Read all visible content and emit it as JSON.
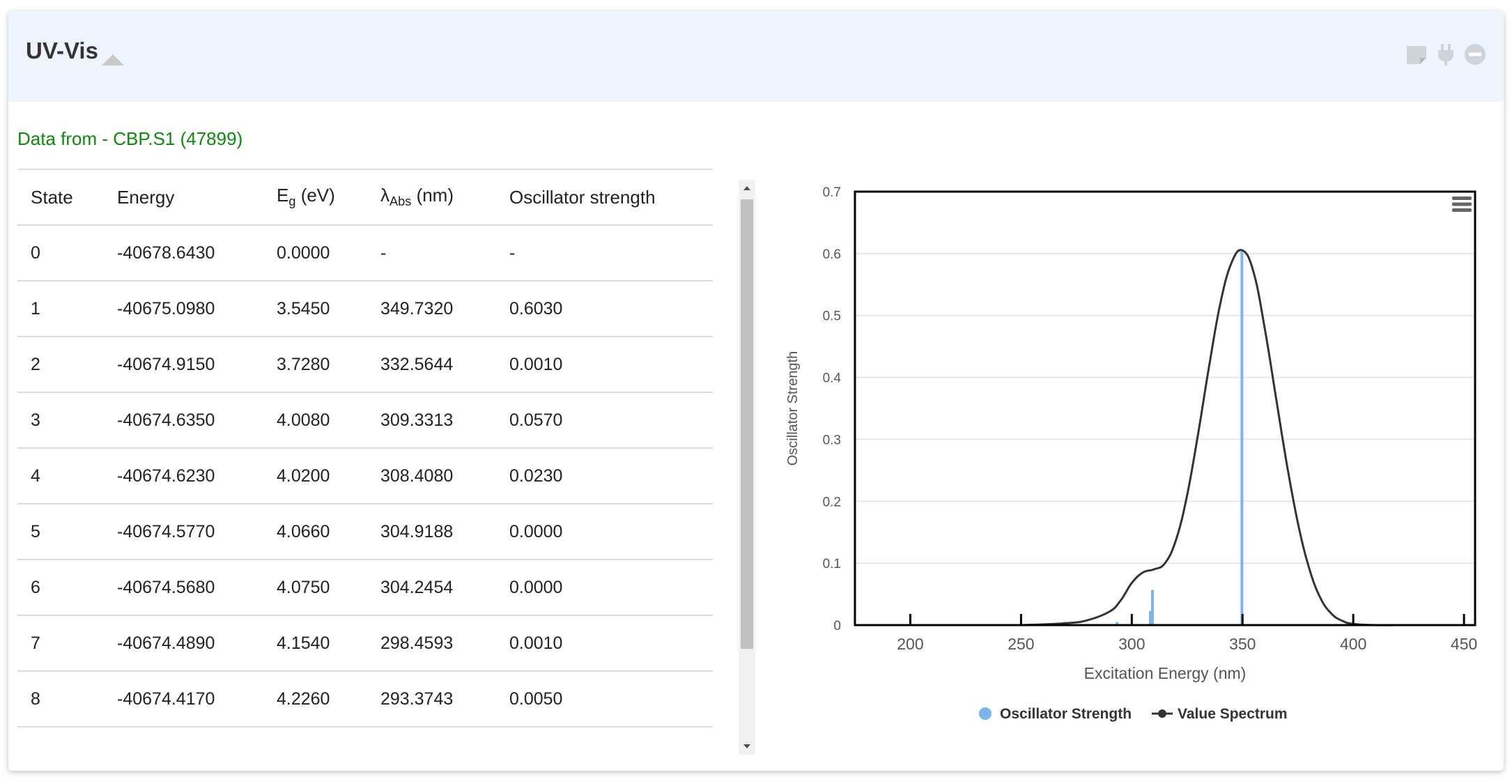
{
  "header": {
    "title": "UV-Vis",
    "collapse_icon": "triangle-up-icon",
    "tools": [
      "note-icon",
      "plug-icon",
      "minus-circle-icon"
    ]
  },
  "source": {
    "label": "Data from - CBP.S1 (47899)",
    "color": "#0c8a0c"
  },
  "table": {
    "columns": {
      "state": "State",
      "energy": "Energy",
      "eg_base": "E",
      "eg_sub": "g",
      "eg_unit": " (eV)",
      "lambda_base": "λ",
      "lambda_sub": "Abs",
      "lambda_unit": " (nm)",
      "osc": "Oscillator strength"
    },
    "rows": [
      {
        "state": "0",
        "energy": "-40678.6430",
        "eg": "0.0000",
        "lambda": "-",
        "osc": "-"
      },
      {
        "state": "1",
        "energy": "-40675.0980",
        "eg": "3.5450",
        "lambda": "349.7320",
        "osc": "0.6030"
      },
      {
        "state": "2",
        "energy": "-40674.9150",
        "eg": "3.7280",
        "lambda": "332.5644",
        "osc": "0.0010"
      },
      {
        "state": "3",
        "energy": "-40674.6350",
        "eg": "4.0080",
        "lambda": "309.3313",
        "osc": "0.0570"
      },
      {
        "state": "4",
        "energy": "-40674.6230",
        "eg": "4.0200",
        "lambda": "308.4080",
        "osc": "0.0230"
      },
      {
        "state": "5",
        "energy": "-40674.5770",
        "eg": "4.0660",
        "lambda": "304.9188",
        "osc": "0.0000"
      },
      {
        "state": "6",
        "energy": "-40674.5680",
        "eg": "4.0750",
        "lambda": "304.2454",
        "osc": "0.0000"
      },
      {
        "state": "7",
        "energy": "-40674.4890",
        "eg": "4.1540",
        "lambda": "298.4593",
        "osc": "0.0010"
      },
      {
        "state": "8",
        "energy": "-40674.4170",
        "eg": "4.2260",
        "lambda": "293.3743",
        "osc": "0.0050"
      }
    ]
  },
  "chart_data": {
    "type": "bar",
    "title": "",
    "xlabel": "Excitation Energy (nm)",
    "ylabel": "Oscillator Strength",
    "xlim": [
      175,
      455
    ],
    "ylim": [
      0,
      0.7
    ],
    "x_ticks": [
      200,
      250,
      300,
      350,
      400,
      450
    ],
    "y_ticks": [
      0,
      0.1,
      0.2,
      0.3,
      0.4,
      0.5,
      0.6,
      0.7
    ],
    "grid": true,
    "legend": "bottom-center",
    "menu_icon": "hamburger-menu-icon",
    "series": [
      {
        "name": "Oscillator Strength",
        "type": "bar",
        "color": "#7cb5ec",
        "x": [
          349.732,
          332.5644,
          309.3313,
          308.408,
          304.9188,
          304.2454,
          298.4593,
          293.3743
        ],
        "y": [
          0.603,
          0.001,
          0.057,
          0.023,
          0.0,
          0.0,
          0.001,
          0.005
        ]
      },
      {
        "name": "Value Spectrum",
        "type": "line",
        "color": "#333333",
        "x": [
          250,
          270,
          280,
          290,
          295,
          300,
          305,
          310,
          315,
          320,
          325,
          330,
          335,
          340,
          345,
          350,
          355,
          360,
          365,
          370,
          375,
          380,
          385,
          390,
          395,
          400,
          410,
          420,
          450
        ],
        "y": [
          0.0,
          0.003,
          0.008,
          0.022,
          0.04,
          0.068,
          0.085,
          0.09,
          0.1,
          0.138,
          0.21,
          0.31,
          0.42,
          0.52,
          0.585,
          0.605,
          0.57,
          0.48,
          0.37,
          0.26,
          0.165,
          0.093,
          0.045,
          0.019,
          0.007,
          0.002,
          0.0,
          0.0,
          0.0
        ]
      }
    ]
  }
}
